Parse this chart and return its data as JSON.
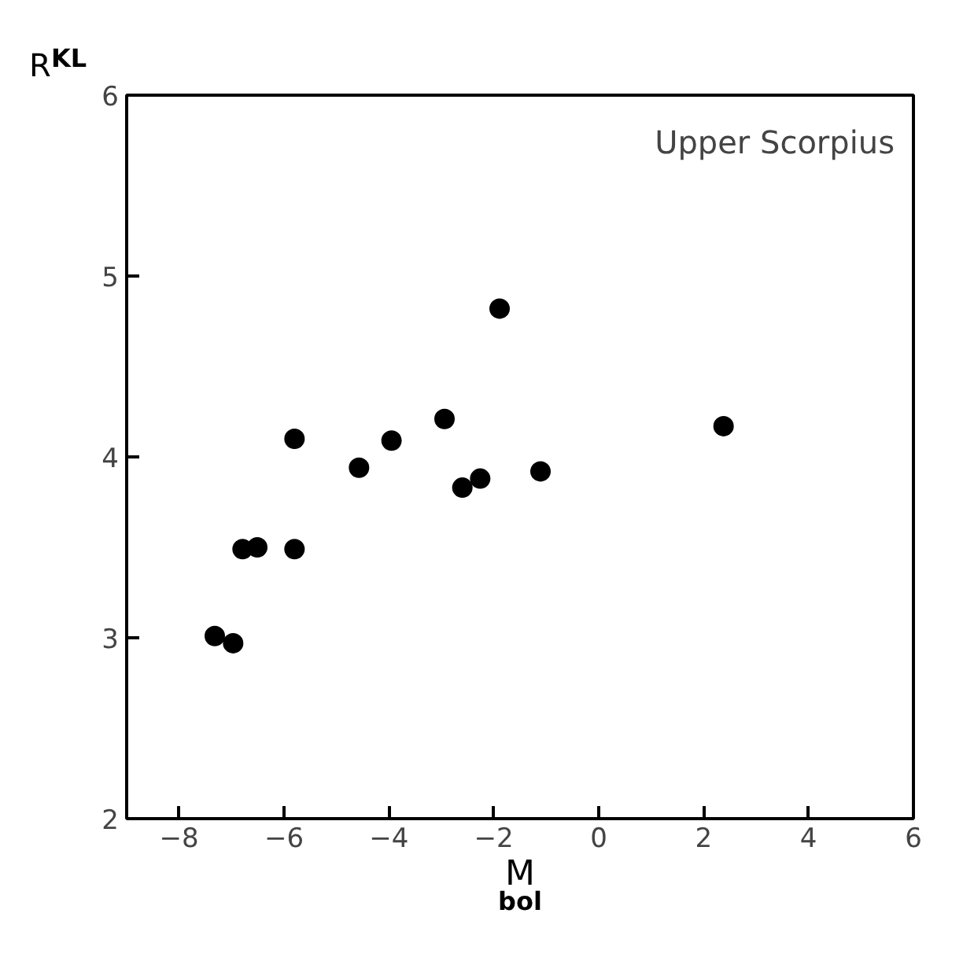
{
  "chart_data": {
    "type": "scatter",
    "xlabel": "M$_{bol}$",
    "ylabel": "R$_{KL}$",
    "annotations": [
      "Upper Scorpius"
    ],
    "x": [
      -7.32,
      -6.97,
      -6.79,
      -6.51,
      -5.8,
      -5.8,
      -4.57,
      -3.95,
      -2.94,
      -2.6,
      -2.26,
      -1.11,
      -1.89,
      2.38
    ],
    "series": [
      {
        "color": "#000000",
        "values": [
          3.01,
          2.97,
          3.49,
          3.5,
          3.49,
          4.1,
          3.94,
          4.09,
          4.21,
          3.83,
          3.88,
          3.92,
          4.82,
          4.17
        ]
      }
    ],
    "xlim": [
      -9,
      6
    ],
    "ylim": [
      2,
      6
    ],
    "xticks": [
      -8,
      -6,
      -4,
      -2,
      0,
      2,
      4,
      6
    ],
    "yticks": [
      2,
      3,
      4,
      5,
      6
    ],
    "marker": "circle"
  }
}
